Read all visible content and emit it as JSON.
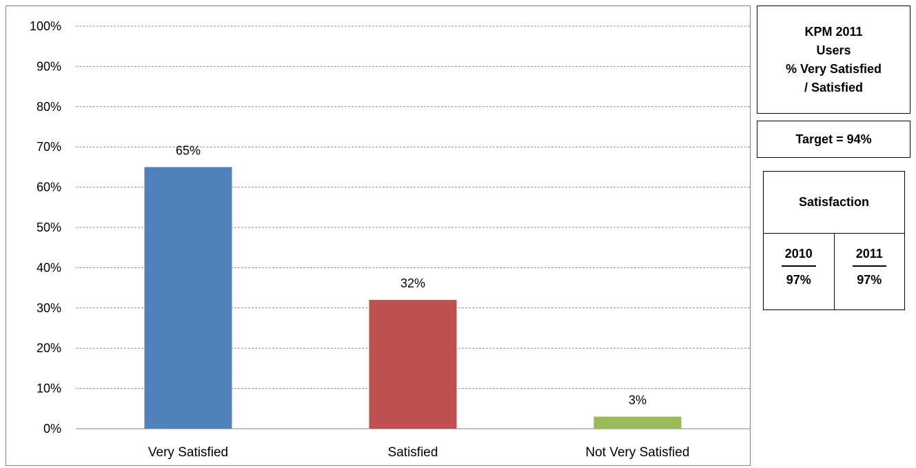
{
  "chart_data": {
    "type": "bar",
    "categories": [
      "Very Satisfied",
      "Satisfied",
      "Not Very Satisfied"
    ],
    "values": [
      65,
      32,
      3
    ],
    "data_labels": [
      "65%",
      "32%",
      "3%"
    ],
    "colors": [
      "#4F81BD",
      "#C0504D",
      "#9BBB59"
    ],
    "ylim": [
      0,
      100
    ],
    "y_ticks": [
      0,
      10,
      20,
      30,
      40,
      50,
      60,
      70,
      80,
      90,
      100
    ],
    "y_tick_labels": [
      "0%",
      "10%",
      "20%",
      "30%",
      "40%",
      "50%",
      "60%",
      "70%",
      "80%",
      "90%",
      "100%"
    ],
    "grid": true,
    "grid_style": "dashed",
    "title": "",
    "xlabel": "",
    "ylabel": ""
  },
  "kpm_box": {
    "line1": "KPM 2011",
    "line2": "Users",
    "line3": "% Very Satisfied",
    "line4": "/ Satisfied"
  },
  "target_box": {
    "label": "Target = 94%"
  },
  "satisfaction_box": {
    "title": "Satisfaction",
    "columns": [
      {
        "year": "2010",
        "value": "97%"
      },
      {
        "year": "2011",
        "value": "97%"
      }
    ]
  }
}
